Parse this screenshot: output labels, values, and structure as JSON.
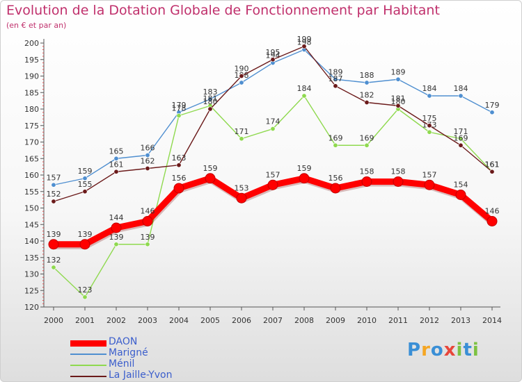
{
  "chart_data": {
    "type": "line",
    "title": "Evolution de la Dotation Globale de Fonctionnement par Habitant",
    "subtitle": "(en € et par an)",
    "x": [
      "2000",
      "2001",
      "2002",
      "2003",
      "2004",
      "2005",
      "2006",
      "2007",
      "2008",
      "2009",
      "2010",
      "2011",
      "2012",
      "2013",
      "2014"
    ],
    "ylim": [
      120,
      200
    ],
    "yticks": [
      120,
      125,
      130,
      135,
      140,
      145,
      150,
      155,
      160,
      165,
      170,
      175,
      180,
      185,
      190,
      195,
      200
    ],
    "grid": false,
    "legend_position": "bottom-left",
    "series": [
      {
        "name": "DAON",
        "color": "#ff0000",
        "values": [
          139,
          139,
          144,
          146,
          156,
          159,
          153,
          157,
          159,
          156,
          158,
          158,
          157,
          154,
          146
        ]
      },
      {
        "name": "Marigné",
        "color": "#4f8fd0",
        "values": [
          157,
          159,
          165,
          166,
          179,
          183,
          188,
          194,
          198,
          189,
          188,
          189,
          184,
          184,
          179
        ]
      },
      {
        "name": "Ménil",
        "color": "#8fd94f",
        "values": [
          132,
          123,
          139,
          139,
          178,
          181,
          171,
          174,
          184,
          169,
          169,
          180,
          173,
          171,
          161
        ]
      },
      {
        "name": "La Jaille-Yvon",
        "color": "#6b1a1a",
        "values": [
          152,
          155,
          161,
          162,
          163,
          180,
          190,
          195,
          199,
          187,
          182,
          181,
          175,
          169,
          161
        ]
      }
    ]
  },
  "logo": {
    "letters": [
      "P",
      "r",
      "o",
      "x",
      "i",
      "t",
      "i"
    ],
    "colors": [
      "#3a8fd6",
      "#f5a623",
      "#3a8fd6",
      "#e8463a",
      "#7dc242",
      "#3a8fd6",
      "#7dc242"
    ]
  }
}
